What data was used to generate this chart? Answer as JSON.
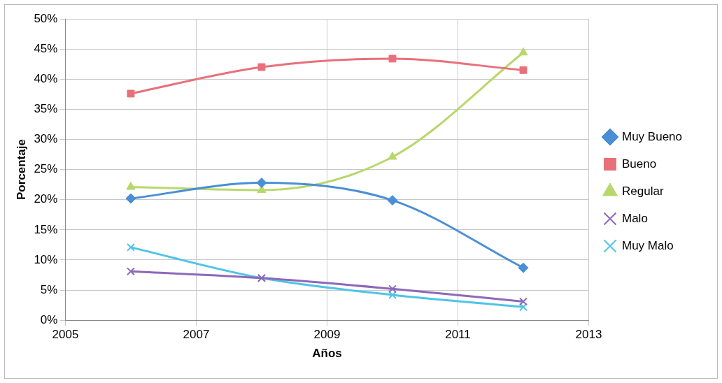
{
  "chart_data": {
    "type": "line",
    "xlabel": "Años",
    "ylabel": "Porcentaje",
    "x": [
      2006,
      2008,
      2010,
      2012
    ],
    "series": [
      {
        "name": "Muy Bueno",
        "color": "#4a8fd6",
        "marker": "diamond",
        "values": [
          20.2,
          22.8,
          19.9,
          8.7
        ]
      },
      {
        "name": "Bueno",
        "color": "#e8707a",
        "marker": "square",
        "values": [
          37.6,
          42.0,
          43.4,
          41.5
        ]
      },
      {
        "name": "Regular",
        "color": "#b8d86c",
        "marker": "triangle",
        "values": [
          22.1,
          21.6,
          27.1,
          44.4
        ]
      },
      {
        "name": "Malo",
        "color": "#8e68b8",
        "marker": "cross",
        "values": [
          8.1,
          7.0,
          5.2,
          3.1
        ]
      },
      {
        "name": "Muy Malo",
        "color": "#4fc4e8",
        "marker": "cross",
        "values": [
          12.1,
          7.0,
          4.2,
          2.2
        ]
      }
    ],
    "xlim": [
      2005,
      2013
    ],
    "xticks": [
      2005,
      2007,
      2009,
      2011,
      2013
    ],
    "ylim": [
      0,
      50
    ],
    "yticks": [
      {
        "value": 0,
        "label": "0%"
      },
      {
        "value": 5,
        "label": "5%"
      },
      {
        "value": 10,
        "label": "10%"
      },
      {
        "value": 15,
        "label": "15%"
      },
      {
        "value": 20,
        "label": "20%"
      },
      {
        "value": 25,
        "label": "25%"
      },
      {
        "value": 30,
        "label": "30%"
      },
      {
        "value": 35,
        "label": "35%"
      },
      {
        "value": 40,
        "label": "40%"
      },
      {
        "value": 45,
        "label": "45%"
      },
      {
        "value": 50,
        "label": "50%"
      }
    ],
    "grid": true,
    "legend": "right",
    "line_style": "solid"
  }
}
